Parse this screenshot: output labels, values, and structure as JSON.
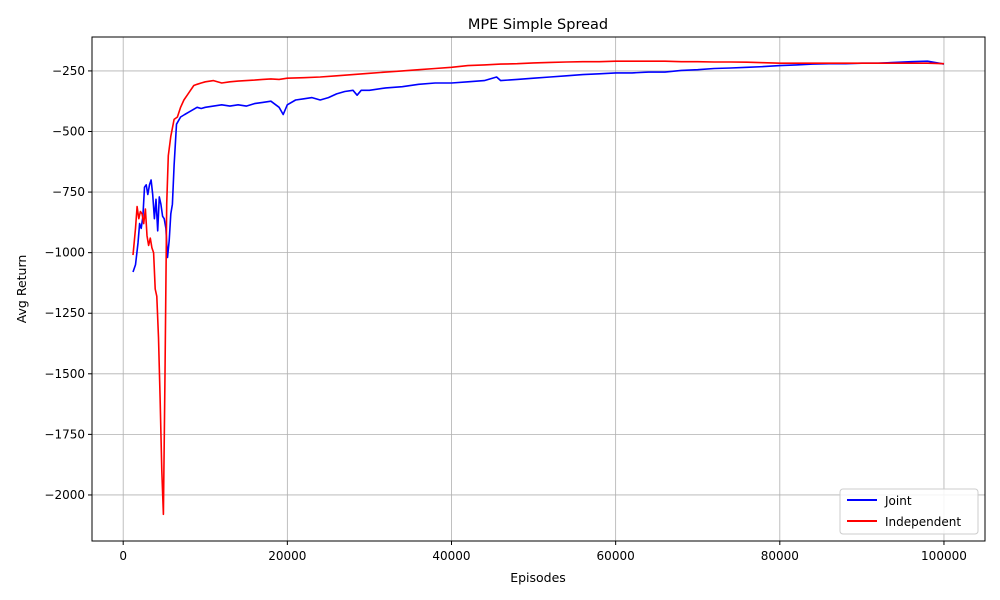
{
  "chart_data": {
    "type": "line",
    "title": "MPE Simple Spread",
    "xlabel": "Episodes",
    "ylabel": "Avg Return",
    "xlim": [
      -3800,
      105000
    ],
    "ylim": [
      -2190,
      -110
    ],
    "xticks": [
      0,
      20000,
      40000,
      60000,
      80000,
      100000
    ],
    "xtick_labels": [
      "0",
      "20000",
      "40000",
      "60000",
      "80000",
      "100000"
    ],
    "yticks": [
      -2000,
      -1750,
      -1500,
      -1250,
      -1000,
      -750,
      -500,
      -250
    ],
    "ytick_labels": [
      "−2000",
      "−1750",
      "−1500",
      "−1250",
      "−1000",
      "−750",
      "−500",
      "−250"
    ],
    "grid": true,
    "legend_position": "bottom-right",
    "series": [
      {
        "name": "Joint",
        "color": "#0000ff",
        "points": [
          [
            1200,
            -1080
          ],
          [
            1500,
            -1050
          ],
          [
            1800,
            -960
          ],
          [
            2000,
            -880
          ],
          [
            2200,
            -900
          ],
          [
            2400,
            -850
          ],
          [
            2600,
            -730
          ],
          [
            2800,
            -720
          ],
          [
            3000,
            -760
          ],
          [
            3200,
            -720
          ],
          [
            3400,
            -700
          ],
          [
            3600,
            -760
          ],
          [
            3800,
            -860
          ],
          [
            4000,
            -780
          ],
          [
            4200,
            -910
          ],
          [
            4400,
            -770
          ],
          [
            4600,
            -800
          ],
          [
            4800,
            -850
          ],
          [
            5000,
            -860
          ],
          [
            5200,
            -900
          ],
          [
            5400,
            -1020
          ],
          [
            5600,
            -950
          ],
          [
            5800,
            -840
          ],
          [
            6000,
            -800
          ],
          [
            6200,
            -640
          ],
          [
            6500,
            -470
          ],
          [
            7000,
            -440
          ],
          [
            7500,
            -430
          ],
          [
            8000,
            -420
          ],
          [
            8500,
            -410
          ],
          [
            9000,
            -400
          ],
          [
            9500,
            -405
          ],
          [
            10000,
            -400
          ],
          [
            11000,
            -395
          ],
          [
            12000,
            -390
          ],
          [
            13000,
            -395
          ],
          [
            14000,
            -390
          ],
          [
            15000,
            -395
          ],
          [
            16000,
            -385
          ],
          [
            17000,
            -380
          ],
          [
            18000,
            -375
          ],
          [
            19000,
            -400
          ],
          [
            19500,
            -430
          ],
          [
            20000,
            -390
          ],
          [
            21000,
            -370
          ],
          [
            22000,
            -365
          ],
          [
            23000,
            -360
          ],
          [
            24000,
            -370
          ],
          [
            25000,
            -360
          ],
          [
            26000,
            -345
          ],
          [
            27000,
            -335
          ],
          [
            28000,
            -330
          ],
          [
            28500,
            -350
          ],
          [
            29000,
            -330
          ],
          [
            30000,
            -330
          ],
          [
            32000,
            -320
          ],
          [
            34000,
            -315
          ],
          [
            36000,
            -305
          ],
          [
            38000,
            -300
          ],
          [
            40000,
            -300
          ],
          [
            42000,
            -295
          ],
          [
            44000,
            -290
          ],
          [
            45500,
            -275
          ],
          [
            46000,
            -290
          ],
          [
            48000,
            -285
          ],
          [
            50000,
            -280
          ],
          [
            52000,
            -275
          ],
          [
            54000,
            -270
          ],
          [
            56000,
            -265
          ],
          [
            58000,
            -262
          ],
          [
            60000,
            -258
          ],
          [
            62000,
            -258
          ],
          [
            64000,
            -255
          ],
          [
            66000,
            -255
          ],
          [
            68000,
            -248
          ],
          [
            70000,
            -245
          ],
          [
            72000,
            -240
          ],
          [
            74000,
            -238
          ],
          [
            76000,
            -235
          ],
          [
            78000,
            -232
          ],
          [
            80000,
            -228
          ],
          [
            82000,
            -225
          ],
          [
            84000,
            -222
          ],
          [
            86000,
            -220
          ],
          [
            88000,
            -220
          ],
          [
            90000,
            -218
          ],
          [
            92000,
            -218
          ],
          [
            94000,
            -215
          ],
          [
            96000,
            -212
          ],
          [
            98000,
            -210
          ],
          [
            100000,
            -222
          ]
        ]
      },
      {
        "name": "Independent",
        "color": "#ff0000",
        "points": [
          [
            1200,
            -1010
          ],
          [
            1500,
            -900
          ],
          [
            1700,
            -810
          ],
          [
            1900,
            -860
          ],
          [
            2100,
            -830
          ],
          [
            2300,
            -840
          ],
          [
            2500,
            -880
          ],
          [
            2700,
            -820
          ],
          [
            2900,
            -930
          ],
          [
            3100,
            -970
          ],
          [
            3300,
            -940
          ],
          [
            3500,
            -980
          ],
          [
            3700,
            -1000
          ],
          [
            3900,
            -1150
          ],
          [
            4100,
            -1180
          ],
          [
            4300,
            -1350
          ],
          [
            4500,
            -1600
          ],
          [
            4700,
            -1900
          ],
          [
            4900,
            -2080
          ],
          [
            5100,
            -1500
          ],
          [
            5300,
            -800
          ],
          [
            5500,
            -600
          ],
          [
            5800,
            -520
          ],
          [
            6200,
            -450
          ],
          [
            6600,
            -440
          ],
          [
            7000,
            -400
          ],
          [
            7400,
            -370
          ],
          [
            7800,
            -350
          ],
          [
            8200,
            -330
          ],
          [
            8600,
            -310
          ],
          [
            9000,
            -305
          ],
          [
            9500,
            -300
          ],
          [
            10000,
            -295
          ],
          [
            11000,
            -290
          ],
          [
            12000,
            -300
          ],
          [
            13000,
            -295
          ],
          [
            14000,
            -292
          ],
          [
            15000,
            -290
          ],
          [
            16000,
            -288
          ],
          [
            17000,
            -285
          ],
          [
            18000,
            -283
          ],
          [
            19000,
            -285
          ],
          [
            20000,
            -280
          ],
          [
            22000,
            -278
          ],
          [
            24000,
            -275
          ],
          [
            26000,
            -270
          ],
          [
            28000,
            -265
          ],
          [
            30000,
            -260
          ],
          [
            32000,
            -255
          ],
          [
            34000,
            -250
          ],
          [
            36000,
            -245
          ],
          [
            38000,
            -240
          ],
          [
            40000,
            -235
          ],
          [
            42000,
            -228
          ],
          [
            44000,
            -225
          ],
          [
            46000,
            -222
          ],
          [
            48000,
            -220
          ],
          [
            50000,
            -217
          ],
          [
            52000,
            -215
          ],
          [
            54000,
            -213
          ],
          [
            56000,
            -212
          ],
          [
            58000,
            -212
          ],
          [
            60000,
            -210
          ],
          [
            62000,
            -210
          ],
          [
            64000,
            -210
          ],
          [
            66000,
            -210
          ],
          [
            68000,
            -212
          ],
          [
            70000,
            -212
          ],
          [
            72000,
            -213
          ],
          [
            74000,
            -213
          ],
          [
            76000,
            -214
          ],
          [
            78000,
            -216
          ],
          [
            80000,
            -218
          ],
          [
            82000,
            -218
          ],
          [
            84000,
            -218
          ],
          [
            86000,
            -218
          ],
          [
            88000,
            -218
          ],
          [
            90000,
            -218
          ],
          [
            92000,
            -218
          ],
          [
            94000,
            -218
          ],
          [
            96000,
            -218
          ],
          [
            98000,
            -218
          ],
          [
            100000,
            -220
          ]
        ]
      }
    ]
  }
}
